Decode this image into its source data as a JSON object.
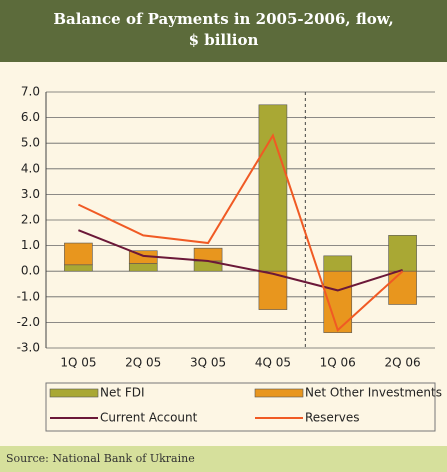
{
  "header": {
    "title": "Balance of Payments in 2005-2006, flow, $ billion"
  },
  "chart_data": {
    "type": "combo",
    "categories": [
      "1Q 05",
      "2Q 05",
      "3Q 05",
      "4Q 05",
      "1Q 06",
      "2Q 06"
    ],
    "series": [
      {
        "name": "Net FDI",
        "type": "bar",
        "color": "#a9a834",
        "values": [
          0.25,
          0.3,
          0.4,
          6.5,
          0.6,
          1.4
        ]
      },
      {
        "name": "Net Other Investments",
        "type": "bar",
        "color": "#e8961e",
        "values": [
          0.85,
          0.5,
          0.5,
          -1.5,
          -2.4,
          -1.3
        ]
      },
      {
        "name": "Current Account",
        "type": "line",
        "color": "#6b1838",
        "values": [
          1.6,
          0.6,
          0.4,
          -0.1,
          -0.75,
          0.05
        ]
      },
      {
        "name": "Reserves",
        "type": "line",
        "color": "#f05a24",
        "values": [
          2.6,
          1.4,
          1.1,
          5.3,
          -2.3,
          0.0
        ]
      }
    ],
    "ylim": [
      -3,
      7
    ],
    "yticks": [
      {
        "value": 7,
        "label": "7.0"
      },
      {
        "value": 6,
        "label": "6.0"
      },
      {
        "value": 5,
        "label": "5.0"
      },
      {
        "value": 4,
        "label": "4.0"
      },
      {
        "value": 3,
        "label": "3.0"
      },
      {
        "value": 2,
        "label": "2.0"
      },
      {
        "value": 1,
        "label": "1.0"
      },
      {
        "value": 0,
        "label": "0.0"
      },
      {
        "value": -1,
        "label": "-1.0"
      },
      {
        "value": -2,
        "label": "-2.0"
      },
      {
        "value": -3,
        "label": "-3.0"
      }
    ],
    "grid": true
  },
  "footer": {
    "source": "Source: National Bank of Ukraine"
  }
}
